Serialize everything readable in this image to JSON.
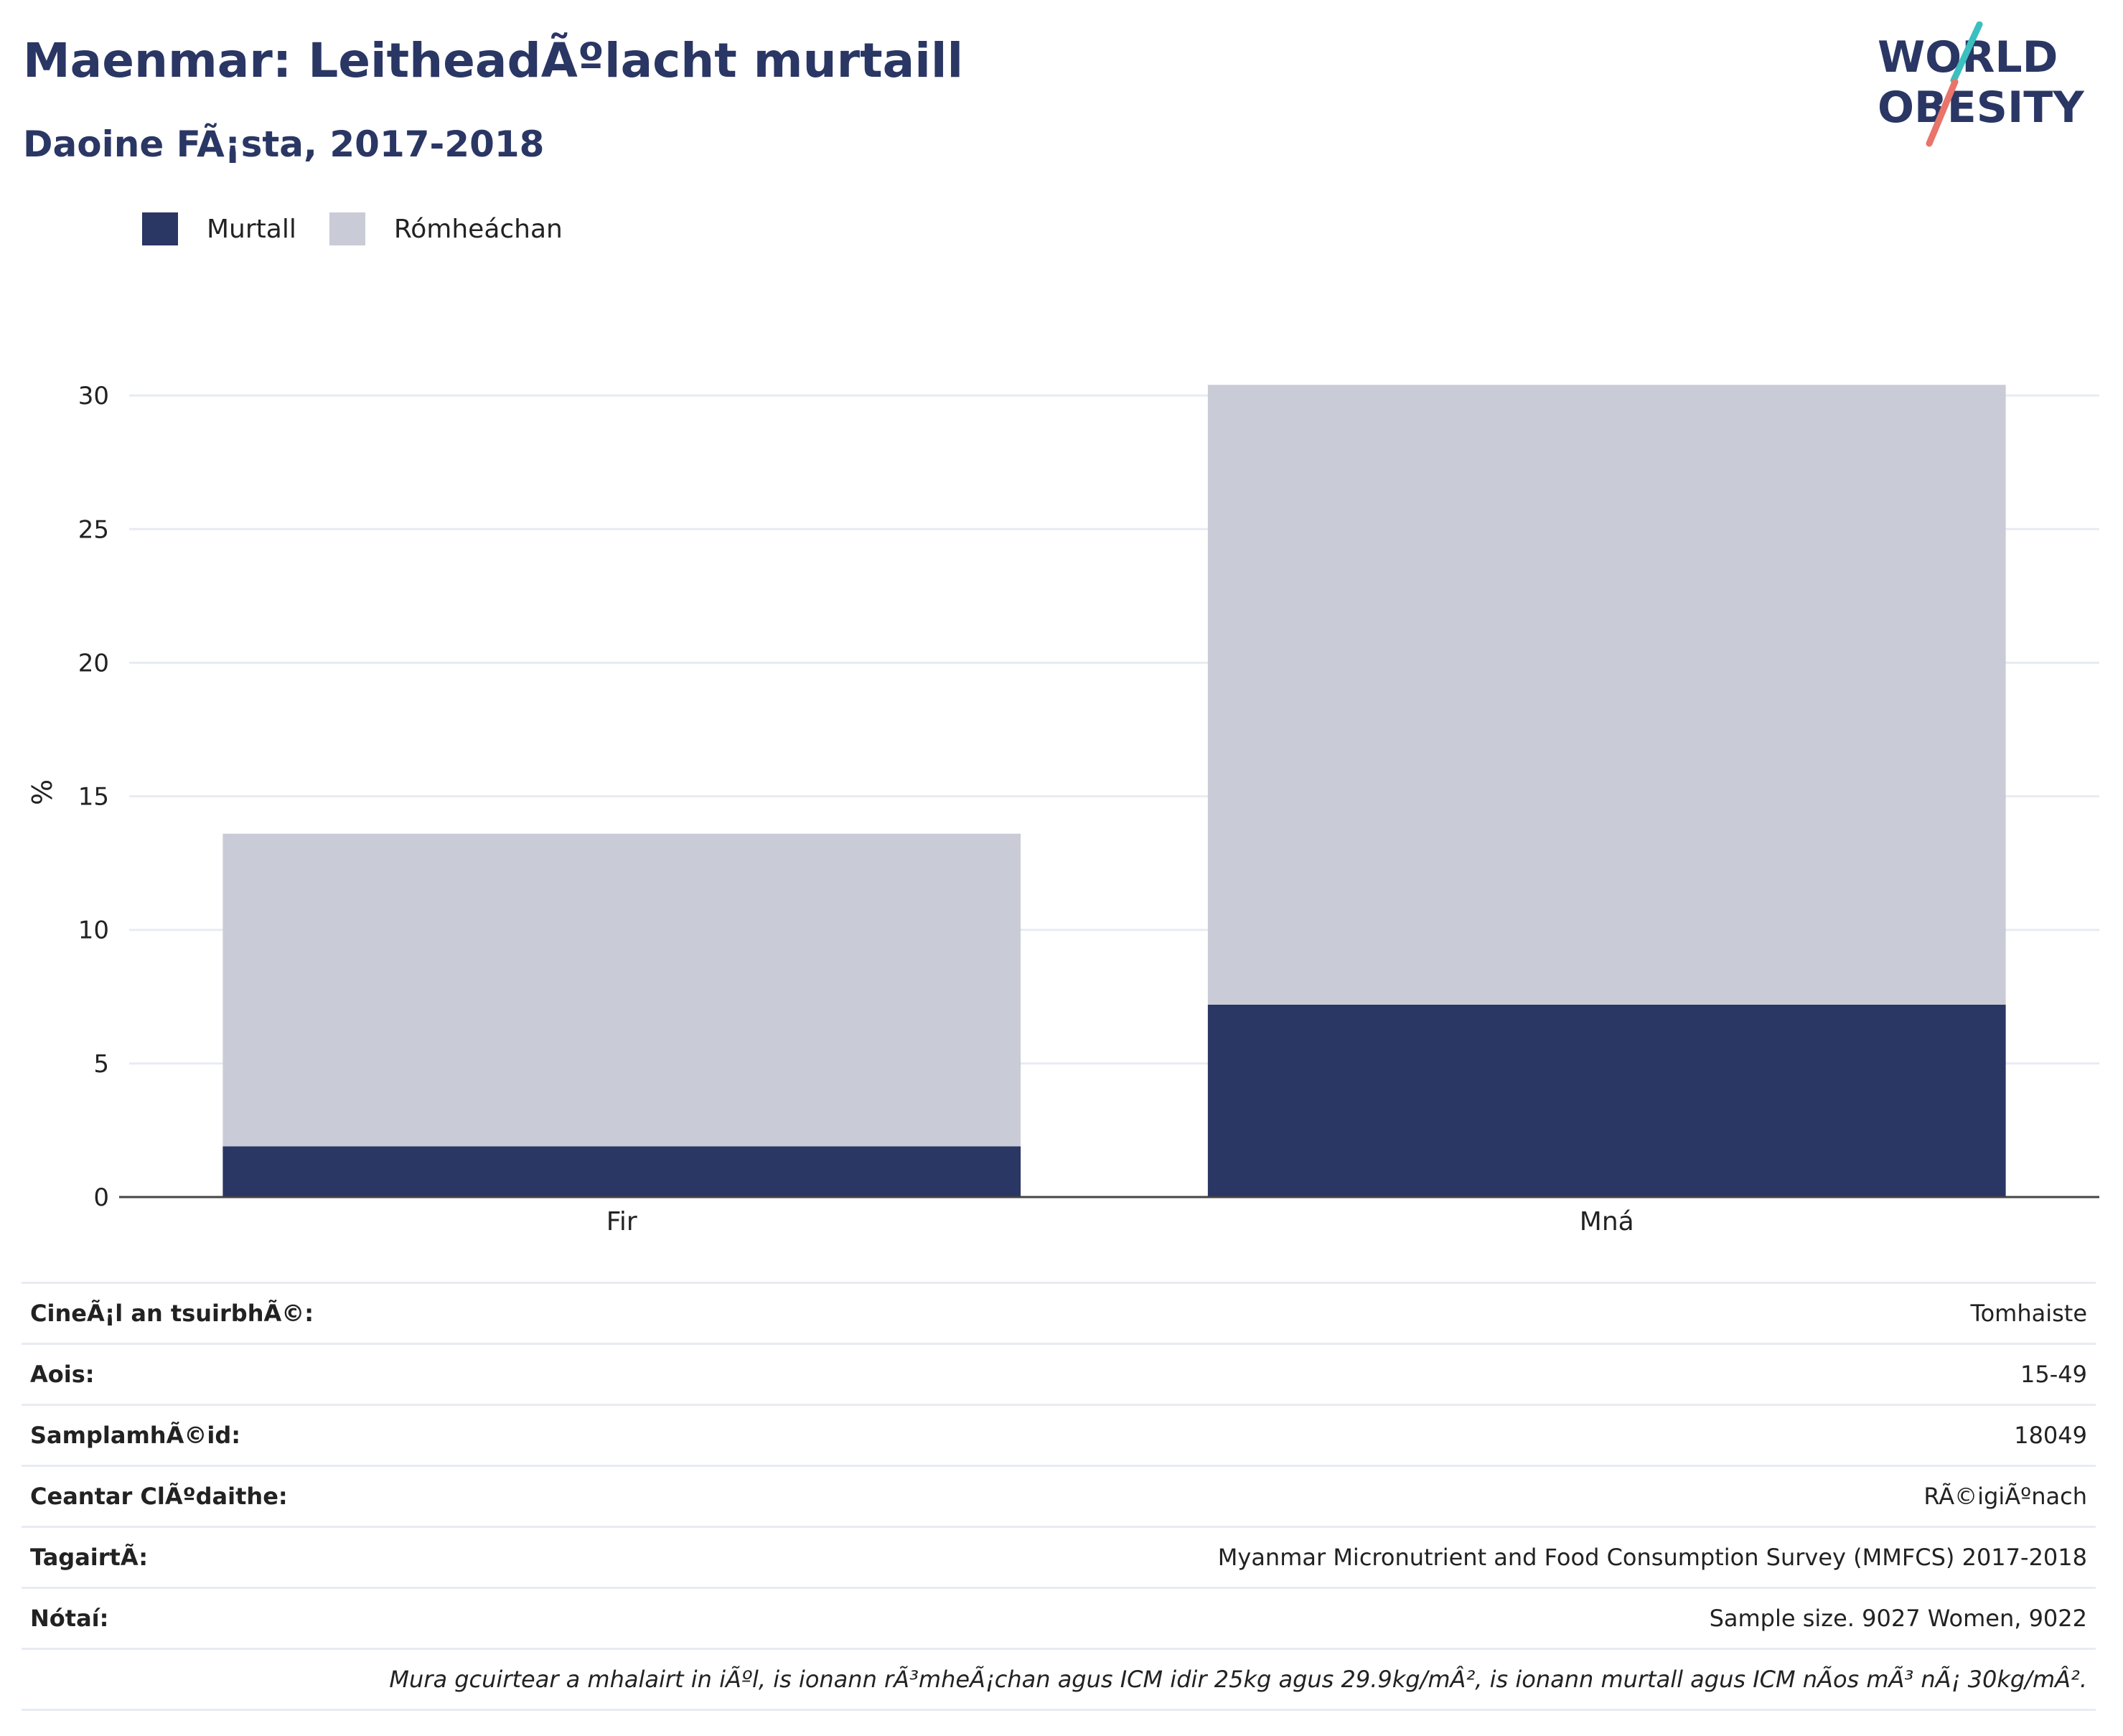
{
  "header": {
    "title": "Maenmar: LeitheadÃºlacht murtaill",
    "subtitle": "Daoine FÃ¡sta, 2017-2018"
  },
  "logo": {
    "line1": "WORLD",
    "line2": "OBESITY"
  },
  "colors": {
    "title": "#2a3664",
    "obese": "#2a3664",
    "overweight": "#c9ccd7",
    "grid": "#e8ebf3",
    "logo_teal": "#3bbfbf",
    "logo_coral": "#e8746a"
  },
  "legend": [
    {
      "label": "Murtall",
      "color": "#2a3664"
    },
    {
      "label": "Rómheáchan",
      "color": "#c9ccd7"
    }
  ],
  "chart_data": {
    "type": "bar",
    "stacked": true,
    "categories": [
      "Fir",
      "Mná"
    ],
    "series": [
      {
        "name": "Murtall",
        "values": [
          1.9,
          7.2
        ]
      },
      {
        "name": "Rómheáchan",
        "values": [
          11.7,
          23.2
        ]
      }
    ],
    "ylabel": "%",
    "xlabel": "",
    "ylim": [
      0,
      30.3
    ],
    "yticks": [
      0,
      5,
      10,
      15,
      20,
      25,
      30
    ],
    "grid": true,
    "legend_position": "top-left"
  },
  "info": [
    {
      "key": "CineÃ¡l an tsuirbhÃ©:",
      "value": "Tomhaiste"
    },
    {
      "key": "Aois:",
      "value": "15-49"
    },
    {
      "key": "SamplamhÃ©id:",
      "value": "18049"
    },
    {
      "key": "Ceantar ClÃºdaithe:",
      "value": "RÃ©igiÃºnach"
    },
    {
      "key": "TagairtÃ:",
      "value": "Myanmar Micronutrient and Food Consumption Survey (MMFCS) 2017-2018"
    },
    {
      "key": "Nótaí:",
      "value": "Sample size. 9027 Women, 9022"
    }
  ],
  "footnote": "Mura gcuirtear a mhalairt in iÃºl, is ionann rÃ³mheÃ¡chan agus ICM idir 25kg agus 29.9kg/mÂ², is ionann murtall agus ICM nÃos mÃ³ nÃ¡ 30kg/mÂ²."
}
